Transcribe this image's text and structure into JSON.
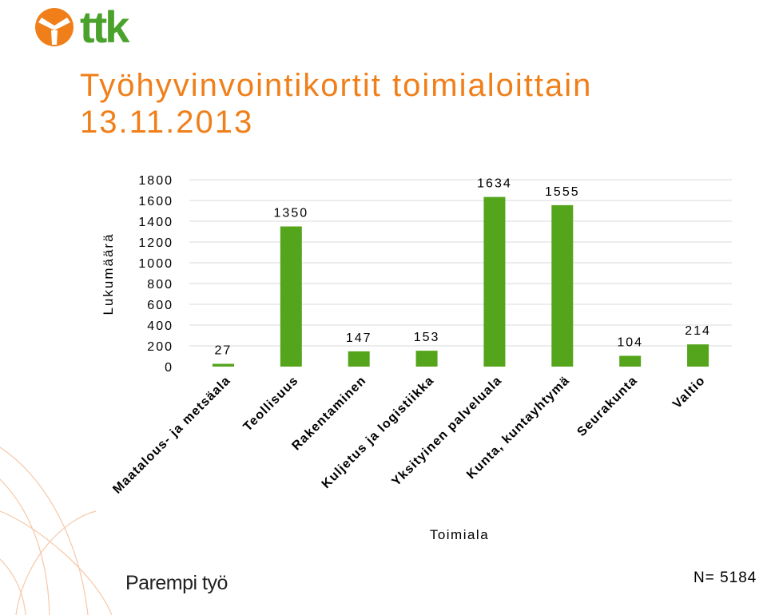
{
  "logo_text": "ttk",
  "title_line1": "Työhyvinvointikortit toimialoittain",
  "title_line2": "13.11.2013",
  "slogan": "Parempi työ",
  "n_label": "N= 5184",
  "colors": {
    "brand_orange": "#f07f1a",
    "logo_green": "#4aa22c",
    "bar_green": "#55a51c",
    "grid": "#d9d9d9",
    "deco_arc": "#f6c8a8"
  },
  "chart_data": {
    "type": "bar",
    "title": "",
    "xlabel": "Toimiala",
    "ylabel": "Lukumäärä",
    "ylim": [
      0,
      1800
    ],
    "yticks": [
      0,
      200,
      400,
      600,
      800,
      1000,
      1200,
      1400,
      1600,
      1800
    ],
    "grid": true,
    "categories": [
      "Maatalous- ja metsäala",
      "Teollisuus",
      "Rakentaminen",
      "Kuljetus ja logistiikka",
      "Yksityinen palveluala",
      "Kunta, kuntayhtymä",
      "Seurakunta",
      "Valtio"
    ],
    "values": [
      27,
      1350,
      147,
      153,
      1634,
      1555,
      104,
      214
    ],
    "data_labels": [
      "27",
      "1350",
      "147",
      "153",
      "1634",
      "1555",
      "104",
      "214"
    ]
  }
}
